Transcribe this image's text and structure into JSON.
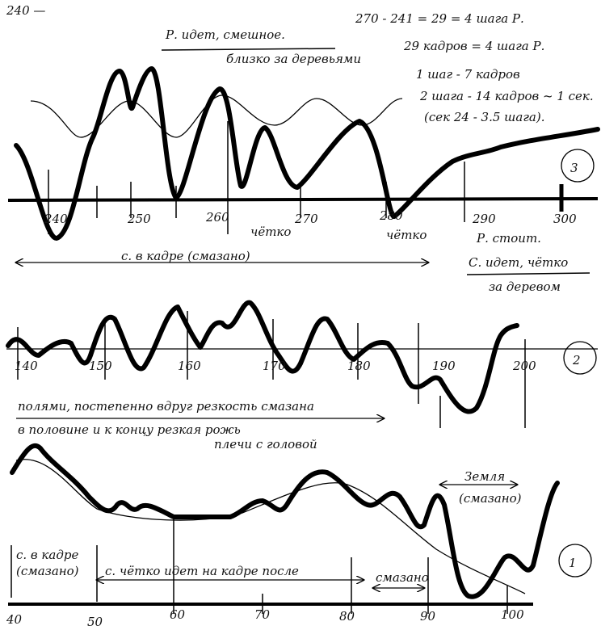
{
  "page_number": "240 —",
  "panel3": {
    "title": "Р. идет, смешное.",
    "subtitle": "близко за деревьями",
    "notes": [
      "270 - 241 = 29 = 4 шага Р.",
      "29 кадров = 4 шага Р.",
      "1 шаг - 7 кадров",
      "2 шага - 14 кадров ~ 1 сек.",
      "(сек 24 - 3.5 шага)."
    ],
    "number": "3",
    "ticks": [
      "240",
      "250",
      "260",
      "270",
      "280",
      "290",
      "300"
    ],
    "marks": [
      "чётко",
      "чётко"
    ],
    "span": "с. в кадре (смазано)",
    "right_notes": [
      "Р. стоит.",
      "С. идет, чётко",
      "за деревом"
    ]
  },
  "panel2": {
    "number": "2",
    "ticks": [
      "140",
      "150",
      "160",
      "170",
      "180",
      "190",
      "200"
    ],
    "notes": [
      "полями, постепенно вдруг резкость смазана",
      "в половине и к концу резкая рожь",
      "плечи с головой"
    ]
  },
  "panel1": {
    "number": "1",
    "ticks": [
      "40",
      "50",
      "60",
      "70",
      "80",
      "90",
      "100"
    ],
    "earth": "Земля",
    "earth_note": "(смазано)",
    "left_note": [
      "с. в кадре",
      "(смазано)"
    ],
    "span": "с. чётко идет на кадре после",
    "blur": "смазано"
  }
}
